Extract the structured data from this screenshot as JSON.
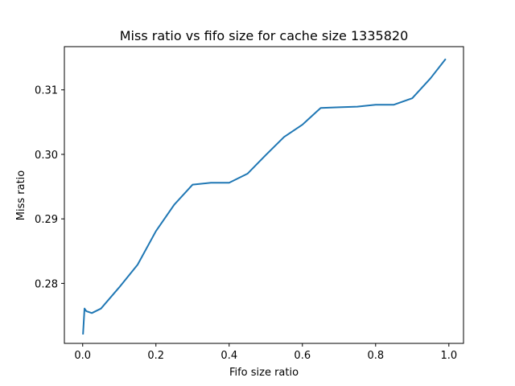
{
  "chart_data": {
    "type": "line",
    "title": "Miss ratio vs fifo size for cache size 1335820",
    "xlabel": "Fifo size ratio",
    "ylabel": "Miss ratio",
    "xlim": [
      -0.05,
      1.04
    ],
    "ylim": [
      0.2707,
      0.3167
    ],
    "xticks": [
      0.0,
      0.2,
      0.4,
      0.6,
      0.8,
      1.0
    ],
    "xtick_labels": [
      "0.0",
      "0.2",
      "0.4",
      "0.6",
      "0.8",
      "1.0"
    ],
    "yticks": [
      0.28,
      0.29,
      0.3,
      0.31
    ],
    "ytick_labels": [
      "0.28",
      "0.29",
      "0.30",
      "0.31"
    ],
    "grid": false,
    "legend": "none",
    "series": [
      {
        "color": "#1f77b4",
        "x": [
          0.001,
          0.005,
          0.01,
          0.025,
          0.05,
          0.1,
          0.15,
          0.2,
          0.25,
          0.3,
          0.35,
          0.4,
          0.45,
          0.5,
          0.55,
          0.6,
          0.65,
          0.7,
          0.75,
          0.8,
          0.85,
          0.9,
          0.95,
          0.99
        ],
        "y": [
          0.2722,
          0.2761,
          0.2757,
          0.2754,
          0.2761,
          0.2794,
          0.2829,
          0.2881,
          0.2922,
          0.2953,
          0.2956,
          0.2956,
          0.297,
          0.2999,
          0.3027,
          0.3046,
          0.3072,
          0.3073,
          0.3074,
          0.3077,
          0.3077,
          0.3087,
          0.3118,
          0.3147
        ]
      }
    ]
  }
}
